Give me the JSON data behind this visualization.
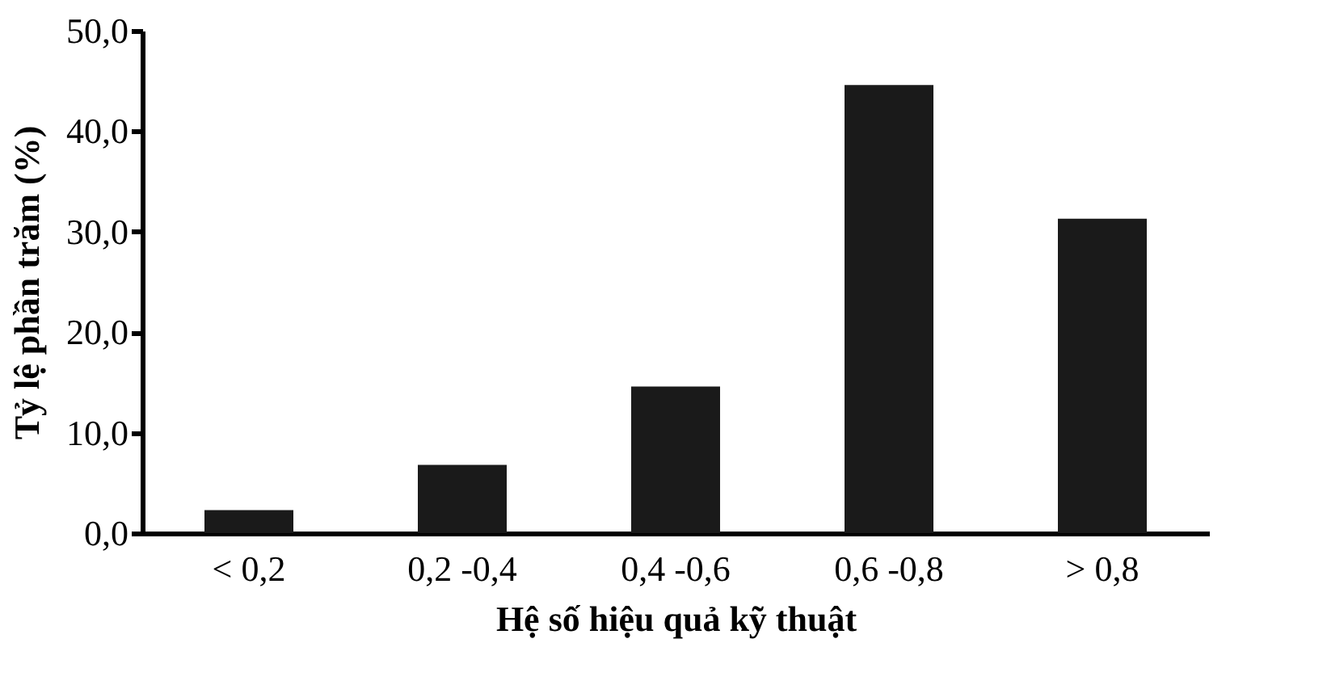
{
  "chart_data": {
    "type": "bar",
    "xlabel": "Hệ số hiệu quả kỹ thuật",
    "ylabel": "Tỷ lệ phần trăm (%)",
    "categories": [
      "< 0,2",
      "0,2 -0,4",
      "0,4 -0,6",
      "0,6 -0,8",
      "> 0,8"
    ],
    "values": [
      2.3,
      6.8,
      14.6,
      44.6,
      31.3
    ],
    "color": "#1a1a1a",
    "ylim": [
      0,
      50
    ],
    "yticks": [
      {
        "value": 0,
        "label": "0,0"
      },
      {
        "value": 10,
        "label": "10,0"
      },
      {
        "value": 20,
        "label": "20,0"
      },
      {
        "value": 30,
        "label": "30,0"
      },
      {
        "value": 40,
        "label": "40,0"
      },
      {
        "value": 50,
        "label": "50,0"
      }
    ],
    "grid": false
  }
}
